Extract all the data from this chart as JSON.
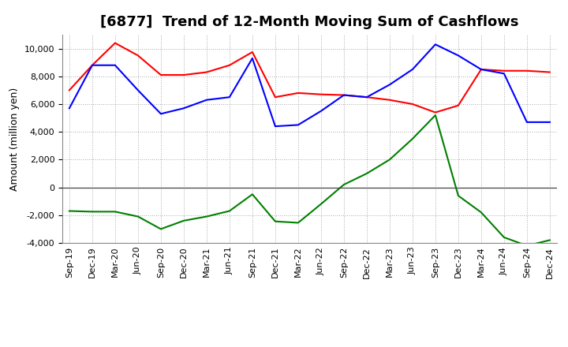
{
  "title": "[6877]  Trend of 12-Month Moving Sum of Cashflows",
  "ylabel": "Amount (million yen)",
  "x_labels": [
    "Sep-19",
    "Dec-19",
    "Mar-20",
    "Jun-20",
    "Sep-20",
    "Dec-20",
    "Mar-21",
    "Jun-21",
    "Sep-21",
    "Dec-21",
    "Mar-22",
    "Jun-22",
    "Sep-22",
    "Dec-22",
    "Mar-23",
    "Jun-23",
    "Sep-23",
    "Dec-23",
    "Mar-24",
    "Jun-24",
    "Sep-24",
    "Dec-24"
  ],
  "operating": [
    7000,
    8800,
    10400,
    9500,
    8100,
    8100,
    8300,
    8800,
    9750,
    6500,
    6800,
    6700,
    6650,
    6500,
    6300,
    6000,
    5400,
    5900,
    8500,
    8400,
    8400,
    8300
  ],
  "investing": [
    -1700,
    -1750,
    -1750,
    -2100,
    -3000,
    -2400,
    -2100,
    -1700,
    -500,
    -2450,
    -2550,
    -1200,
    200,
    1000,
    2000,
    3500,
    5200,
    -600,
    -1800,
    -3600,
    -4200,
    -3800
  ],
  "free": [
    5700,
    8800,
    8800,
    7000,
    5300,
    5700,
    6300,
    6500,
    9300,
    4400,
    4500,
    5500,
    6650,
    6500,
    7400,
    8500,
    10300,
    9500,
    8500,
    8200,
    4700,
    4700
  ],
  "operating_color": "#ff0000",
  "investing_color": "#008000",
  "free_color": "#0000ff",
  "ylim": [
    -4000,
    11000
  ],
  "yticks": [
    -4000,
    -2000,
    0,
    2000,
    4000,
    6000,
    8000,
    10000
  ],
  "background_color": "#ffffff",
  "plot_bg_color": "#ffffff",
  "grid_color": "#aaaaaa",
  "title_fontsize": 13,
  "axis_fontsize": 9,
  "tick_fontsize": 8
}
